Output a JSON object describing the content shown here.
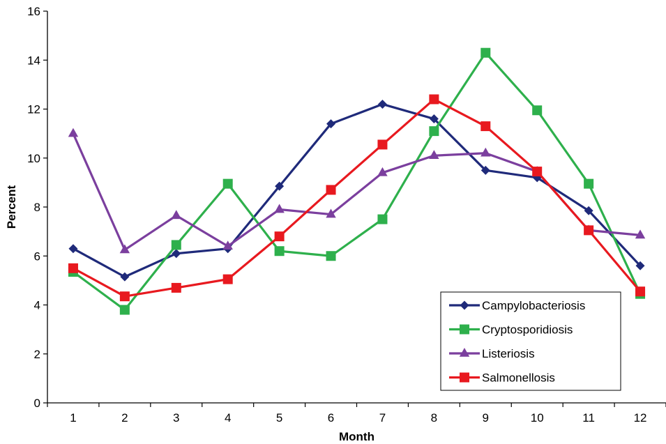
{
  "chart_data": {
    "type": "line",
    "xlabel": "Month",
    "ylabel": "Percent",
    "categories": [
      "1",
      "2",
      "3",
      "4",
      "5",
      "6",
      "7",
      "8",
      "9",
      "10",
      "11",
      "12"
    ],
    "ylim": [
      0,
      16
    ],
    "yticks": [
      "0",
      "2",
      "4",
      "6",
      "8",
      "10",
      "12",
      "14",
      "16"
    ],
    "grid": false,
    "legend_position": "bottom-right",
    "series": [
      {
        "name": "Campylobacteriosis",
        "color": "#1f2a7a",
        "marker": "diamond",
        "values": [
          6.3,
          5.15,
          6.1,
          6.3,
          8.85,
          11.4,
          12.2,
          11.6,
          9.5,
          9.2,
          7.85,
          5.6
        ]
      },
      {
        "name": "Cryptosporidiosis",
        "color": "#2eb04c",
        "marker": "square",
        "values": [
          5.35,
          3.8,
          6.45,
          8.95,
          6.2,
          6.0,
          7.5,
          11.1,
          14.3,
          11.95,
          8.95,
          4.45
        ]
      },
      {
        "name": "Listeriosis",
        "color": "#7b3f9e",
        "marker": "triangle",
        "values": [
          11.0,
          6.25,
          7.65,
          6.4,
          7.9,
          7.7,
          9.4,
          10.1,
          10.2,
          9.45,
          7.05,
          6.85
        ]
      },
      {
        "name": "Salmonellosis",
        "color": "#e8191f",
        "marker": "square",
        "values": [
          5.5,
          4.35,
          4.7,
          5.05,
          6.8,
          8.7,
          10.55,
          12.4,
          11.3,
          9.45,
          7.05,
          4.55
        ]
      }
    ]
  }
}
